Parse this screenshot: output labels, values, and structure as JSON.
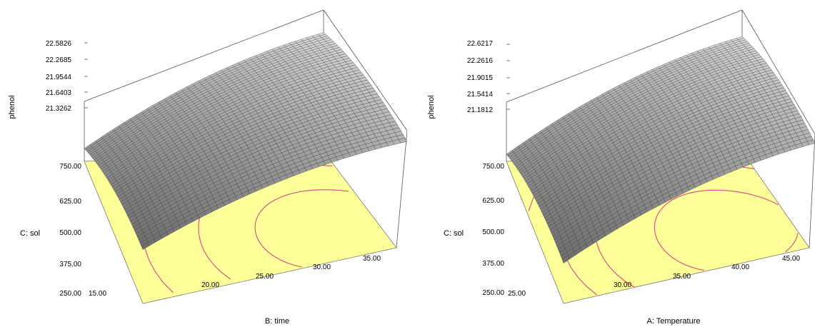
{
  "chart_data": [
    {
      "type": "surface",
      "zlabel": "phenol",
      "xlabel": "B: time",
      "ylabel": "C: sol",
      "x_ticks": [
        "15.00",
        "20.00",
        "25.00",
        "30.00",
        "35.00"
      ],
      "y_ticks": [
        "250.00",
        "375.00",
        "500.00",
        "625.00",
        "750.00"
      ],
      "z_ticks": [
        "21.3262",
        "21.6403",
        "21.9544",
        "22.2685",
        "22.5826"
      ],
      "xlim": [
        15,
        35
      ],
      "ylim": [
        250,
        750
      ],
      "zlim": [
        21.3262,
        22.5826
      ],
      "floor_color": "#ffff99",
      "contour_color": "#e0508a",
      "surface_color": "#808080"
    },
    {
      "type": "surface",
      "zlabel": "phenol",
      "xlabel": "A: Temperature",
      "ylabel": "C: sol",
      "x_ticks": [
        "25.00",
        "30.00",
        "35.00",
        "40.00",
        "45.00"
      ],
      "y_ticks": [
        "250.00",
        "375.00",
        "500.00",
        "625.00",
        "750.00"
      ],
      "z_ticks": [
        "21.1812",
        "21.5414",
        "21.9015",
        "22.2616",
        "22.6217"
      ],
      "xlim": [
        25,
        45
      ],
      "ylim": [
        250,
        750
      ],
      "zlim": [
        21.1812,
        22.6217
      ],
      "floor_color": "#ffff99",
      "contour_color": "#e0508a",
      "surface_color": "#808080"
    }
  ]
}
